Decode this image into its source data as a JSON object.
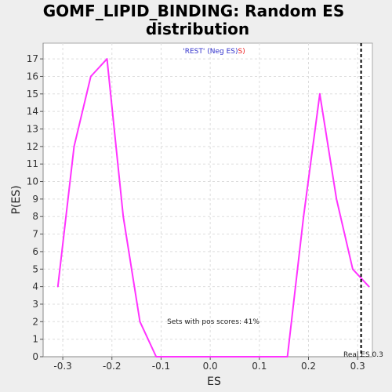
{
  "chart_data": {
    "type": "line",
    "title_line1": "GOMF_LIPID_BINDING: Random ES",
    "title_line2": "distribution",
    "xlabel": "ES",
    "ylabel": "P(ES)",
    "xlim": [
      -0.34,
      0.33
    ],
    "ylim": [
      0,
      17.9
    ],
    "x_ticks": [
      -0.3,
      -0.2,
      -0.1,
      0.0,
      0.1,
      0.2,
      0.3
    ],
    "x_tick_labels": [
      "-0.3",
      "-0.2",
      "-0.1",
      "0.0",
      "0.1",
      "0.2",
      "0.3"
    ],
    "y_ticks": [
      0,
      1,
      2,
      3,
      4,
      5,
      6,
      7,
      8,
      9,
      10,
      11,
      12,
      13,
      14,
      15,
      16,
      17
    ],
    "grid": true,
    "legend": {
      "prefix": "'REST' (Neg ES)",
      "suffix": "S)",
      "prefix_color": "#3333cc",
      "suffix_color": "#ee2222",
      "placement": "top-center"
    },
    "series": [
      {
        "color": "#ff33ff",
        "x": [
          -0.31,
          -0.277,
          -0.243,
          -0.21,
          -0.177,
          -0.143,
          -0.11,
          -0.077,
          -0.043,
          -0.01,
          0.023,
          0.057,
          0.09,
          0.123,
          0.157,
          0.19,
          0.223,
          0.257,
          0.29,
          0.323
        ],
        "y": [
          4,
          12,
          16,
          17,
          8,
          2,
          0,
          0,
          0,
          0,
          0,
          0,
          0,
          0,
          0,
          8,
          15,
          9,
          5,
          4
        ]
      }
    ],
    "real_es": {
      "x": 0.307,
      "label": "Real ES 0.3",
      "line_color": "#000000"
    },
    "annotation": "Sets with pos scores: 41%"
  }
}
